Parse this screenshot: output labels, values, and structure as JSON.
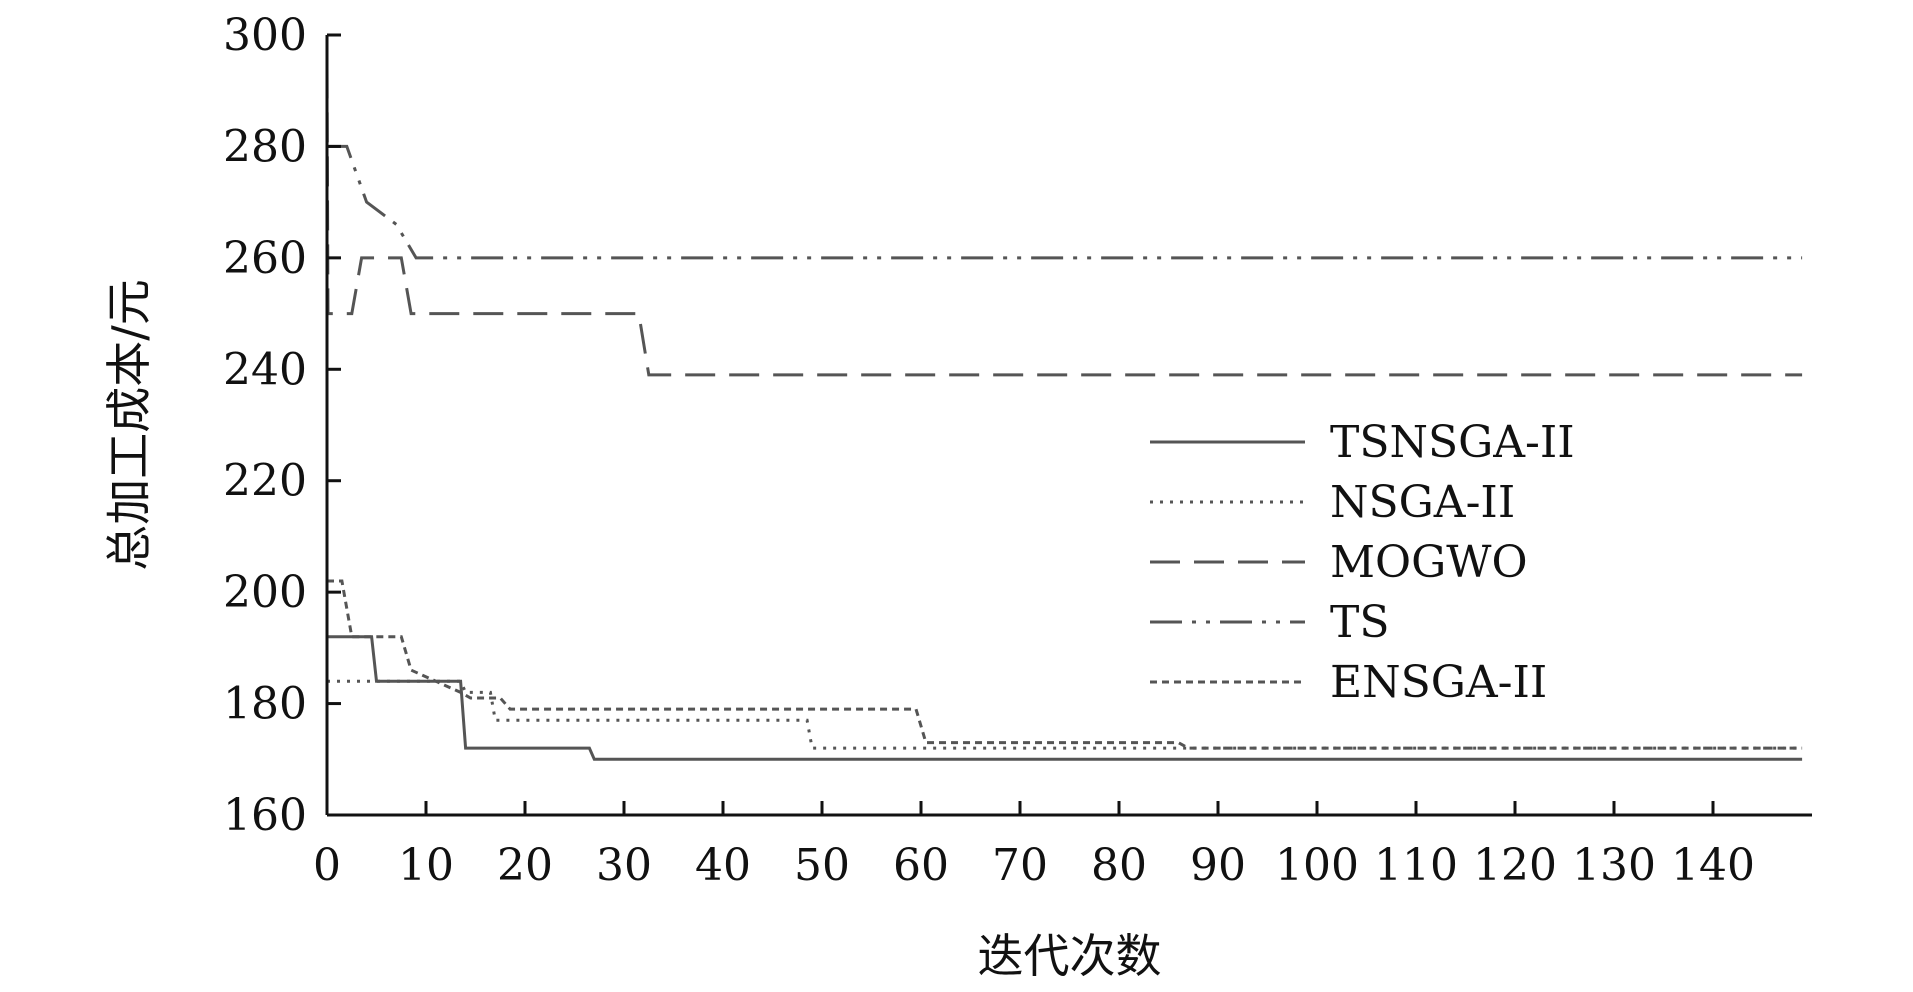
{
  "chart_data": {
    "type": "line",
    "xlabel": "迭代次数",
    "ylabel": "总加工成本/元",
    "xlim": [
      0,
      150
    ],
    "ylim": [
      160,
      300
    ],
    "xticks": [
      0,
      10,
      20,
      30,
      40,
      50,
      60,
      70,
      80,
      90,
      100,
      110,
      120,
      130,
      140
    ],
    "yticks": [
      160,
      180,
      200,
      220,
      240,
      260,
      280,
      300
    ],
    "grid": false,
    "legend_position": "right-center",
    "series": [
      {
        "name": "TSNSGA-II",
        "style": "solid",
        "color": "#555555",
        "x": [
          0,
          4.5,
          5,
          13.5,
          14,
          26.5,
          27,
          149
        ],
        "y": [
          192,
          192,
          184,
          184,
          172,
          172,
          170,
          170
        ]
      },
      {
        "name": "NSGA-II",
        "style": "dotted",
        "color": "#555555",
        "x": [
          0,
          9.5,
          10,
          13.5,
          14,
          16.5,
          17,
          48.5,
          49,
          149
        ],
        "y": [
          184,
          184,
          184,
          184,
          182,
          182,
          177,
          177,
          172,
          172
        ]
      },
      {
        "name": "MOGWO",
        "style": "dashed",
        "color": "#555555",
        "x": [
          0,
          0.1,
          2.5,
          3.5,
          7.5,
          8.5,
          31.5,
          32.5,
          149
        ],
        "y": [
          294,
          250,
          250,
          260,
          260,
          250,
          250,
          239,
          239
        ]
      },
      {
        "name": "TS",
        "style": "dashdotdot",
        "color": "#555555",
        "x": [
          0,
          2,
          4,
          7,
          9,
          149
        ],
        "y": [
          280,
          280,
          270,
          266,
          260,
          260
        ]
      },
      {
        "name": "ENSGA-II",
        "style": "shortdash",
        "color": "#555555",
        "x": [
          0,
          1.5,
          2.5,
          7.5,
          8.5,
          13.5,
          14.5,
          17.5,
          18.5,
          59.5,
          60.5,
          64,
          86,
          87,
          149
        ],
        "y": [
          202,
          202,
          192,
          192,
          186,
          182,
          181,
          181,
          179,
          179,
          173,
          173,
          173,
          172,
          172
        ]
      }
    ]
  }
}
